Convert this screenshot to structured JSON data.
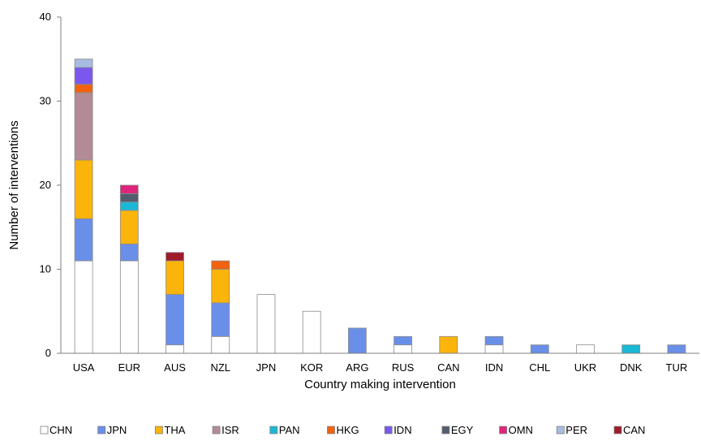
{
  "chart_data": {
    "type": "bar",
    "stacked": true,
    "title": "",
    "xlabel": "Country making intervention",
    "ylabel": "Number of interventions",
    "ylim": [
      0,
      40
    ],
    "yticks": [
      "0",
      "10",
      "20",
      "30",
      "40"
    ],
    "grid": false,
    "legend_position": "bottom",
    "categories": [
      "USA",
      "EUR",
      "AUS",
      "NZL",
      "JPN",
      "KOR",
      "ARG",
      "RUS",
      "CAN",
      "IDN",
      "CHL",
      "UKR",
      "DNK",
      "TUR"
    ],
    "series": [
      {
        "name": "CHN",
        "color": "#ffffff",
        "values": [
          11,
          11,
          1,
          2,
          7,
          5,
          0,
          1,
          0,
          1,
          0,
          1,
          0,
          0
        ]
      },
      {
        "name": "JPN",
        "color": "#6a8fe8",
        "values": [
          5,
          2,
          6,
          4,
          0,
          0,
          3,
          1,
          0,
          1,
          1,
          0,
          0,
          1
        ]
      },
      {
        "name": "THA",
        "color": "#fbb40a",
        "values": [
          7,
          4,
          4,
          4,
          0,
          0,
          0,
          0,
          2,
          0,
          0,
          0,
          0,
          0
        ]
      },
      {
        "name": "ISR",
        "color": "#b28b97",
        "values": [
          8,
          0,
          0,
          0,
          0,
          0,
          0,
          0,
          0,
          0,
          0,
          0,
          0,
          0
        ]
      },
      {
        "name": "PAN",
        "color": "#1bb8d6",
        "values": [
          0,
          1,
          0,
          0,
          0,
          0,
          0,
          0,
          0,
          0,
          0,
          0,
          1,
          0
        ]
      },
      {
        "name": "HKG",
        "color": "#f2630f",
        "values": [
          1,
          0,
          0,
          1,
          0,
          0,
          0,
          0,
          0,
          0,
          0,
          0,
          0,
          0
        ]
      },
      {
        "name": "IDN",
        "color": "#7b58ed",
        "values": [
          2,
          0,
          0,
          0,
          0,
          0,
          0,
          0,
          0,
          0,
          0,
          0,
          0,
          0
        ]
      },
      {
        "name": "EGY",
        "color": "#535d6f",
        "values": [
          0,
          1,
          0,
          0,
          0,
          0,
          0,
          0,
          0,
          0,
          0,
          0,
          0,
          0
        ]
      },
      {
        "name": "OMN",
        "color": "#e0247b",
        "values": [
          0,
          1,
          0,
          0,
          0,
          0,
          0,
          0,
          0,
          0,
          0,
          0,
          0,
          0
        ]
      },
      {
        "name": "PER",
        "color": "#a6bce0",
        "values": [
          1,
          0,
          0,
          0,
          0,
          0,
          0,
          0,
          0,
          0,
          0,
          0,
          0,
          0
        ]
      },
      {
        "name": "CAN",
        "color": "#9e1b2c",
        "values": [
          0,
          0,
          1,
          0,
          0,
          0,
          0,
          0,
          0,
          0,
          0,
          0,
          0,
          0
        ]
      }
    ]
  }
}
